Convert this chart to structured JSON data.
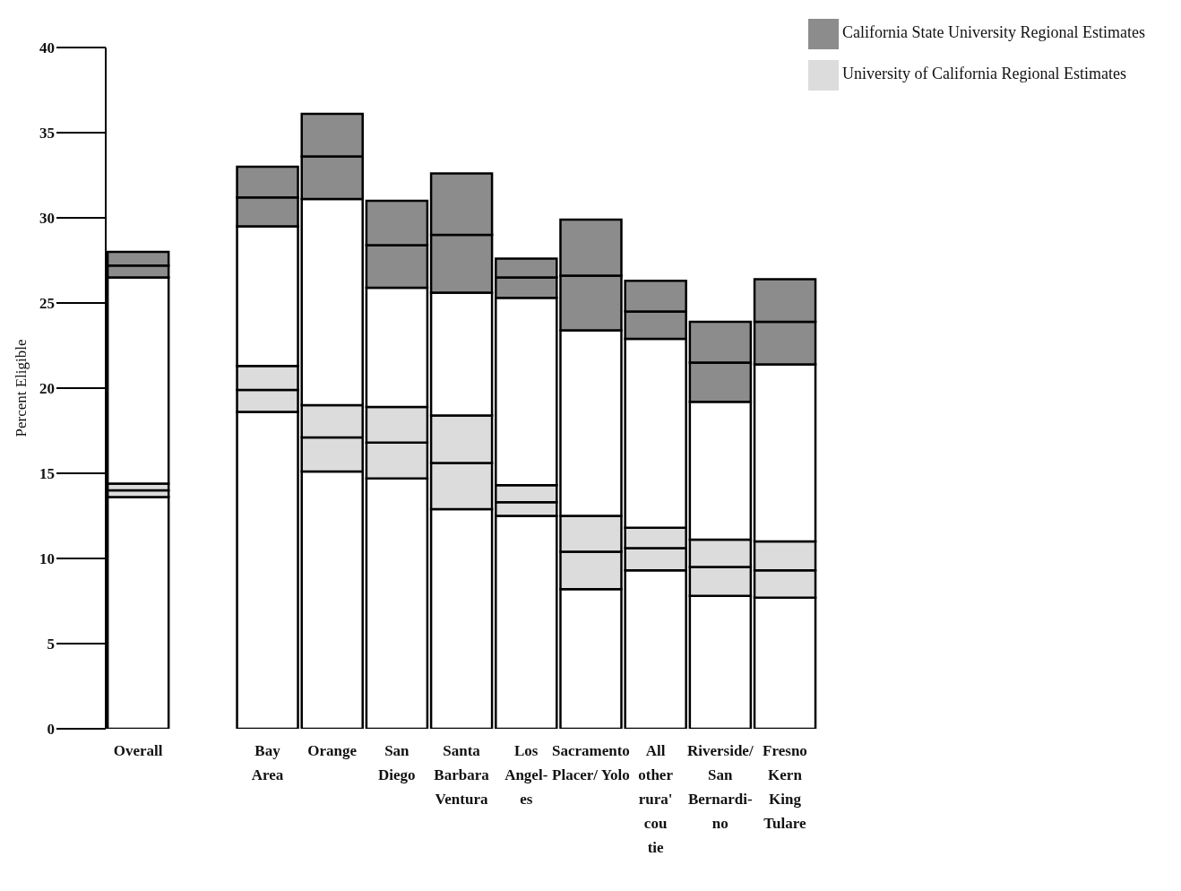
{
  "chart_data": {
    "type": "bar",
    "stacked": true,
    "ylabel": "Percent Eligible",
    "categories": [
      "Overall",
      null,
      "Bay\nArea",
      "Orange",
      "San\nDiego",
      "Santa\nBarbara\nVentura",
      "Los\nAngel-\nes",
      "Sacramento\nPlacer/ Yolo",
      "All\nother\nrura'\ncou\ntie",
      "Riverside/\nSan\nBernardi-\nno",
      "Fresno\nKern\nKing\nTulare"
    ],
    "series": [
      {
        "color": "#ffffff",
        "values": [
          13.6,
          null,
          18.6,
          15.1,
          14.7,
          12.9,
          12.5,
          8.2,
          9.3,
          7.8,
          7.7
        ]
      },
      {
        "name": "University of California Regional Estimates",
        "color": "#dcdcdc",
        "values": [
          0.4,
          null,
          1.3,
          2.0,
          2.1,
          2.7,
          0.8,
          2.2,
          1.3,
          1.7,
          1.6
        ]
      },
      {
        "color": "#dcdcdc",
        "values": [
          0.4,
          null,
          1.4,
          1.9,
          2.1,
          2.8,
          1.0,
          2.1,
          1.2,
          1.6,
          1.7
        ]
      },
      {
        "color": "#ffffff",
        "values": [
          12.1,
          null,
          8.2,
          12.1,
          7.0,
          7.2,
          11.0,
          10.9,
          11.1,
          8.1,
          10.4
        ]
      },
      {
        "name": "California State University Regional Estimates",
        "color": "#8c8c8c",
        "values": [
          0.7,
          null,
          1.7,
          2.5,
          2.5,
          3.4,
          1.2,
          3.2,
          1.6,
          2.3,
          2.5
        ]
      },
      {
        "color": "#8c8c8c",
        "values": [
          0.8,
          null,
          1.8,
          2.5,
          2.6,
          3.6,
          1.1,
          3.3,
          1.8,
          2.4,
          2.5
        ]
      }
    ],
    "ylim": [
      0,
      40
    ],
    "yticks": [
      0,
      5,
      10,
      15,
      20,
      25,
      30,
      35,
      40
    ],
    "grid": false,
    "legend": "top right"
  }
}
